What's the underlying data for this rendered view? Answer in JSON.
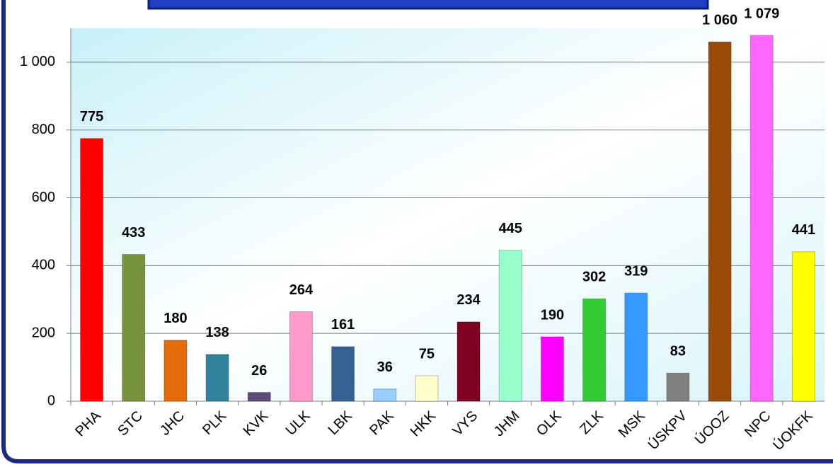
{
  "chart_data": {
    "type": "bar",
    "categories": [
      "PHA",
      "STC",
      "JHC",
      "PLK",
      "KVK",
      "ULK",
      "LBK",
      "PAK",
      "HKK",
      "VYS",
      "JHM",
      "OLK",
      "ZLK",
      "MSK",
      "ÚSKPV",
      "ÚOOZ",
      "NPC",
      "ÚOKFK"
    ],
    "values": [
      775,
      433,
      180,
      138,
      26,
      264,
      161,
      36,
      75,
      234,
      445,
      190,
      302,
      319,
      83,
      1060,
      1079,
      441
    ],
    "value_labels": [
      "775",
      "433",
      "180",
      "138",
      "26",
      "264",
      "161",
      "36",
      "75",
      "234",
      "445",
      "190",
      "302",
      "319",
      "83",
      "1 060",
      "1 079",
      "441"
    ],
    "colors": [
      "#ff0000",
      "#77933c",
      "#e46c0a",
      "#31849b",
      "#604a7b",
      "#ff99cc",
      "#366092",
      "#99ccff",
      "#ffffcc",
      "#800020",
      "#99ffcc",
      "#ff00ff",
      "#33cc33",
      "#3399ff",
      "#808080",
      "#994c0a",
      "#ff66ff",
      "#ffff00"
    ],
    "ylim": [
      0,
      1100
    ],
    "yticks": [
      0,
      200,
      400,
      600,
      800,
      {
        "value": 1000,
        "label": "1 000"
      }
    ],
    "grid": true
  }
}
